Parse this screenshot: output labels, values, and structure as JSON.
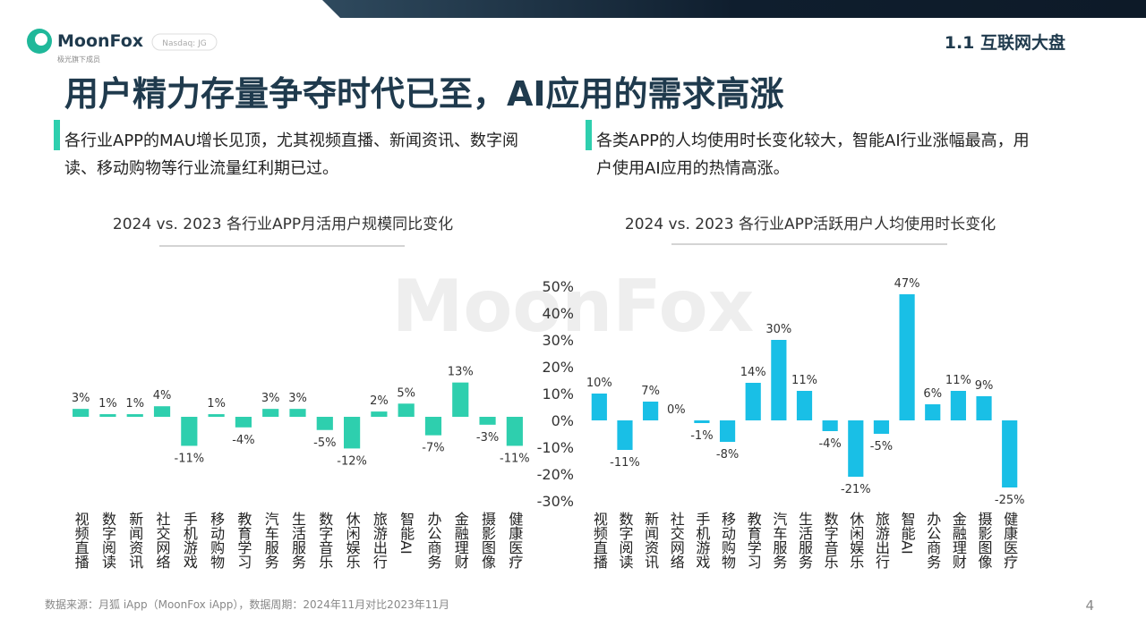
{
  "logo": {
    "name": "MoonFox",
    "tagline": "极光旗下成员",
    "badge": "Nasdaq: JG"
  },
  "header": {
    "section": "1.1 互联网大盘",
    "title": "用户精力存量争夺时代已至，AI应用的需求高涨"
  },
  "notes": [
    "各行业APP的MAU增长见顶，尤其视频直播、新闻资讯、数字阅读、移动购物等行业流量红利期已过。",
    "各类APP的人均使用时长变化较大，智能AI行业涨幅最高，用户使用AI应用的热情高涨。"
  ],
  "footer": {
    "source": "数据来源：月狐 iApp（MoonFox iApp），数据周期：2024年11月对比2023年11月",
    "page": "4"
  },
  "chart_data": [
    {
      "type": "bar",
      "title": "2024 vs. 2023 各行业APP月活用户规模同比变化",
      "categories": [
        "视频直播",
        "数字阅读",
        "新闻资讯",
        "社交网络",
        "手机游戏",
        "移动购物",
        "教育学习",
        "汽车服务",
        "生活服务",
        "数字音乐",
        "休闲娱乐",
        "旅游出行",
        "智能AI",
        "办公商务",
        "金融理财",
        "摄影图像",
        "健康医疗"
      ],
      "values": [
        3,
        1,
        1,
        4,
        -11,
        1,
        -4,
        3,
        3,
        -5,
        -12,
        2,
        5,
        -7,
        13,
        -3,
        -11
      ],
      "value_labels": [
        "3%",
        "1%",
        "1%",
        "4%",
        "-11%",
        "1%",
        "-4%",
        "3%",
        "3%",
        "-5%",
        "-12%",
        "2%",
        "5%",
        "-7%",
        "13%",
        "-3%",
        "-11%"
      ],
      "color": "#2ecfae"
    },
    {
      "type": "bar",
      "title": "2024 vs. 2023 各行业APP活跃用户人均使用时长变化",
      "categories": [
        "视频直播",
        "数字阅读",
        "新闻资讯",
        "社交网络",
        "手机游戏",
        "移动购物",
        "教育学习",
        "汽车服务",
        "生活服务",
        "数字音乐",
        "休闲娱乐",
        "旅游出行",
        "智能AI",
        "办公商务",
        "金融理财",
        "摄影图像",
        "健康医疗"
      ],
      "values": [
        10,
        -11,
        7,
        0,
        -1,
        -8,
        14,
        30,
        11,
        -4,
        -21,
        -5,
        47,
        6,
        11,
        9,
        -25
      ],
      "value_labels": [
        "10%",
        "-11%",
        "7%",
        "0%",
        "-1%",
        "-8%",
        "14%",
        "30%",
        "11%",
        "-4%",
        "-21%",
        "-5%",
        "47%",
        "6%",
        "11%",
        "9%",
        "-25%"
      ],
      "color": "#19bfe6",
      "ylim": [
        -30,
        50
      ],
      "yticks": [
        {
          "value": -30,
          "label": "-30%"
        },
        {
          "value": -20,
          "label": "-20%"
        },
        {
          "value": -10,
          "label": "-10%"
        },
        {
          "value": 0,
          "label": "0%"
        },
        {
          "value": 10,
          "label": "10%"
        },
        {
          "value": 20,
          "label": "20%"
        },
        {
          "value": 30,
          "label": "30%"
        },
        {
          "value": 40,
          "label": "40%"
        },
        {
          "value": 50,
          "label": "50%"
        }
      ]
    }
  ]
}
